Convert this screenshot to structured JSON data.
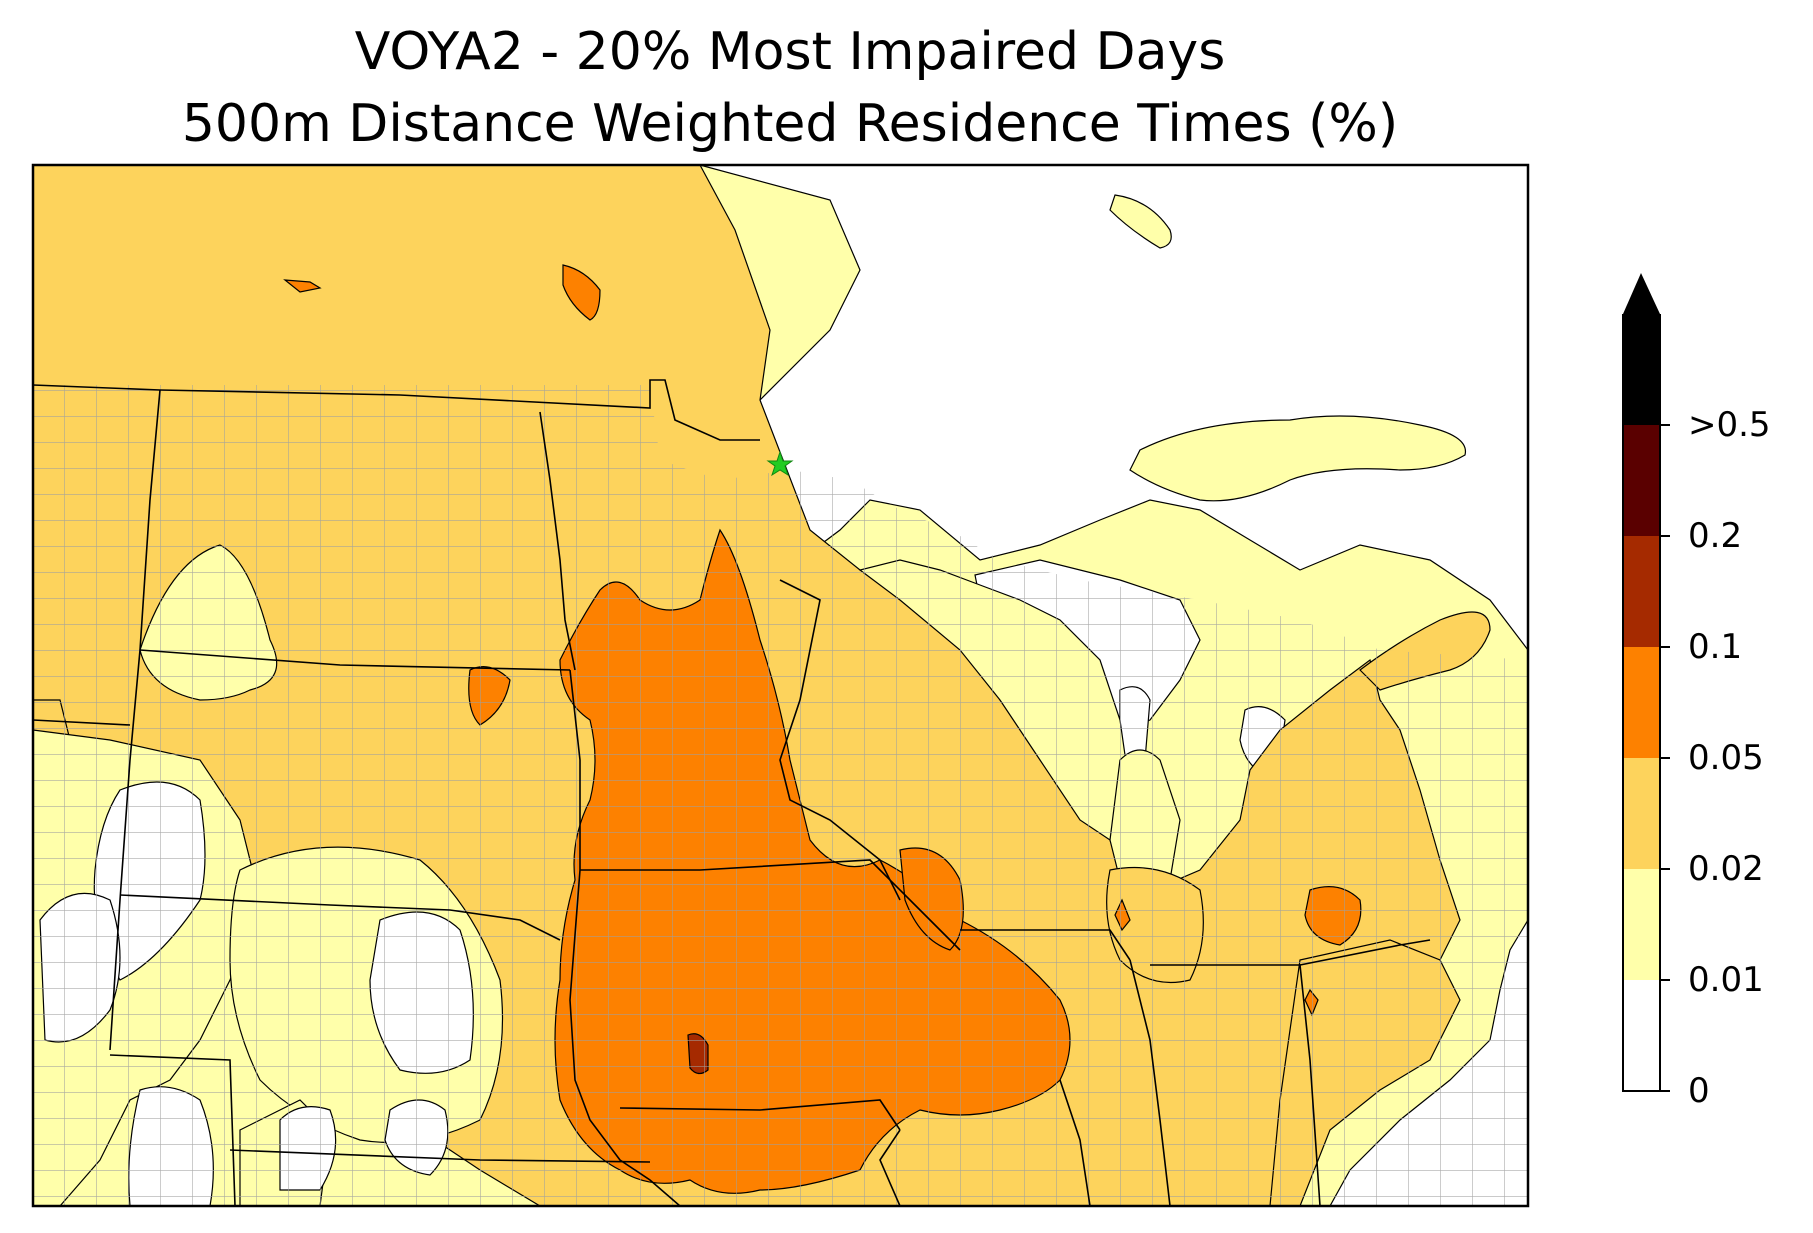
{
  "title": {
    "line1": "VOYA2 - 20% Most Impaired Days",
    "line2": "500m Distance Weighted Residence Times (%)"
  },
  "colorbar": {
    "levels": [
      {
        "label": "0",
        "color": "#ffffff"
      },
      {
        "label": "0.01",
        "color": "#ffffaa"
      },
      {
        "label": "0.02",
        "color": "#fdd35c"
      },
      {
        "label": "0.05",
        "color": "#fd8100"
      },
      {
        "label": "0.1",
        "color": "#a52a00"
      },
      {
        "label": "0.2",
        "color": "#5a0000"
      },
      {
        "label": ">0.5",
        "color": "#000000"
      }
    ],
    "extend": "max"
  },
  "site_marker": {
    "symbol": "star",
    "color": "#22cc22"
  },
  "colors": {
    "no_data": "#ffffff",
    "low": "#ffffaa",
    "mid": "#fdd35c",
    "high": "#fd8100",
    "higher": "#a52a00",
    "county_lines": "#a0a0a0",
    "state_lines": "#000000"
  }
}
